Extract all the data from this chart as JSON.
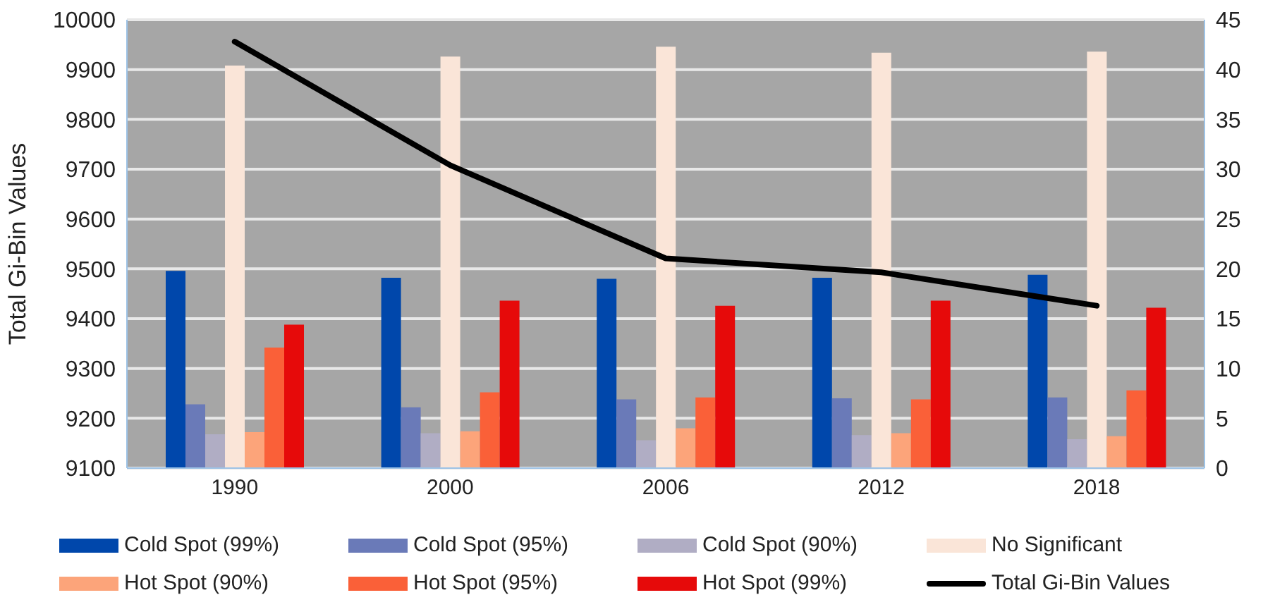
{
  "chart_data": {
    "type": "bar",
    "ylabel": "Total Gi-Bin Values",
    "categories": [
      "1990",
      "2000",
      "2006",
      "2012",
      "2018"
    ],
    "series": [
      {
        "name": "Cold Spot (99%)",
        "color": "#0047ab",
        "axis": "y2",
        "values": [
          19.8,
          19.1,
          19.0,
          19.1,
          19.4
        ]
      },
      {
        "name": "Cold Spot (95%)",
        "color": "#6a7ab8",
        "axis": "y2",
        "values": [
          6.4,
          6.1,
          6.9,
          7.0,
          7.1
        ]
      },
      {
        "name": "Cold Spot (90%)",
        "color": "#b0adc4",
        "axis": "y2",
        "values": [
          3.4,
          3.5,
          2.8,
          3.3,
          2.9
        ]
      },
      {
        "name": "No Significant",
        "color": "#fae5d8",
        "axis": "y2",
        "values": [
          40.4,
          41.3,
          42.3,
          41.7,
          41.8
        ]
      },
      {
        "name": "Hot Spot (90%)",
        "color": "#fca47a",
        "axis": "y2",
        "values": [
          3.6,
          3.7,
          4.0,
          3.5,
          3.2
        ]
      },
      {
        "name": "Hot Spot (95%)",
        "color": "#fa6038",
        "axis": "y2",
        "values": [
          12.1,
          7.6,
          7.1,
          6.9,
          7.8
        ]
      },
      {
        "name": "Hot Spot (99%)",
        "color": "#e60a0a",
        "axis": "y2",
        "values": [
          14.4,
          16.8,
          16.3,
          16.8,
          16.1
        ]
      },
      {
        "name": "Total Gi-Bin Values",
        "type": "line",
        "color": "#000000",
        "values": [
          9956,
          9708,
          9521,
          9493,
          9426
        ]
      }
    ],
    "ylim": [
      9100,
      10000
    ],
    "yticks": [
      9100,
      9200,
      9300,
      9400,
      9500,
      9600,
      9700,
      9800,
      9900,
      10000
    ],
    "y2lim": [
      0,
      45
    ],
    "y2ticks": [
      0,
      5,
      10,
      15,
      20,
      25,
      30,
      35,
      40,
      45
    ],
    "grid": "y",
    "legend": "bottom",
    "marker": "none"
  }
}
